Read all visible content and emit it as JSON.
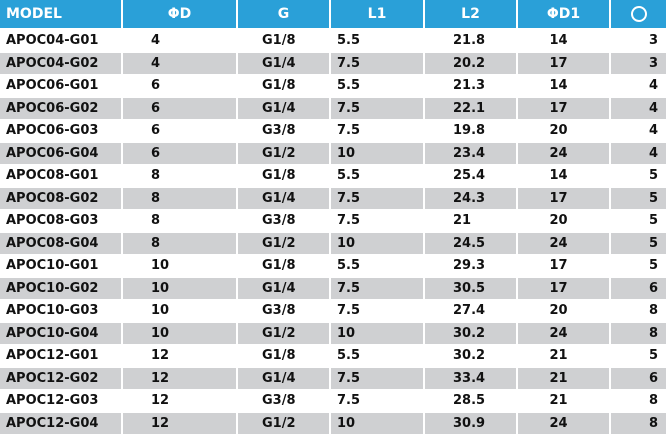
{
  "headers": [
    "MODEL",
    "ΦD",
    "G",
    "L1",
    "L2",
    "ΦD1",
    ""
  ],
  "header_last_icon": "circle-icon",
  "colors": {
    "header_bg": "#2aa0d8",
    "row_alt_bg": "#cfd0d2",
    "row_bg": "#ffffff"
  },
  "rows": [
    [
      "APOC04-G01",
      "4",
      "G1/8",
      "5.5",
      "21.8",
      "14",
      "3"
    ],
    [
      "APOC04-G02",
      "4",
      "G1/4",
      "7.5",
      "20.2",
      "17",
      "3"
    ],
    [
      "APOC06-G01",
      "6",
      "G1/8",
      "5.5",
      "21.3",
      "14",
      "4"
    ],
    [
      "APOC06-G02",
      "6",
      "G1/4",
      "7.5",
      "22.1",
      "17",
      "4"
    ],
    [
      "APOC06-G03",
      "6",
      "G3/8",
      "7.5",
      "19.8",
      "20",
      "4"
    ],
    [
      "APOC06-G04",
      "6",
      "G1/2",
      "10",
      "23.4",
      "24",
      "4"
    ],
    [
      "APOC08-G01",
      "8",
      "G1/8",
      "5.5",
      "25.4",
      "14",
      "5"
    ],
    [
      "APOC08-G02",
      "8",
      "G1/4",
      "7.5",
      "24.3",
      "17",
      "5"
    ],
    [
      "APOC08-G03",
      "8",
      "G3/8",
      "7.5",
      "21",
      "20",
      "5"
    ],
    [
      "APOC08-G04",
      "8",
      "G1/2",
      "10",
      "24.5",
      "24",
      "5"
    ],
    [
      "APOC10-G01",
      "10",
      "G1/8",
      "5.5",
      "29.3",
      "17",
      "5"
    ],
    [
      "APOC10-G02",
      "10",
      "G1/4",
      "7.5",
      "30.5",
      "17",
      "6"
    ],
    [
      "APOC10-G03",
      "10",
      "G3/8",
      "7.5",
      "27.4",
      "20",
      "8"
    ],
    [
      "APOC10-G04",
      "10",
      "G1/2",
      "10",
      "30.2",
      "24",
      "8"
    ],
    [
      "APOC12-G01",
      "12",
      "G1/8",
      "5.5",
      "30.2",
      "21",
      "5"
    ],
    [
      "APOC12-G02",
      "12",
      "G1/4",
      "7.5",
      "33.4",
      "21",
      "6"
    ],
    [
      "APOC12-G03",
      "12",
      "G3/8",
      "7.5",
      "28.5",
      "21",
      "8"
    ],
    [
      "APOC12-G04",
      "12",
      "G1/2",
      "10",
      "30.9",
      "24",
      "8"
    ]
  ]
}
